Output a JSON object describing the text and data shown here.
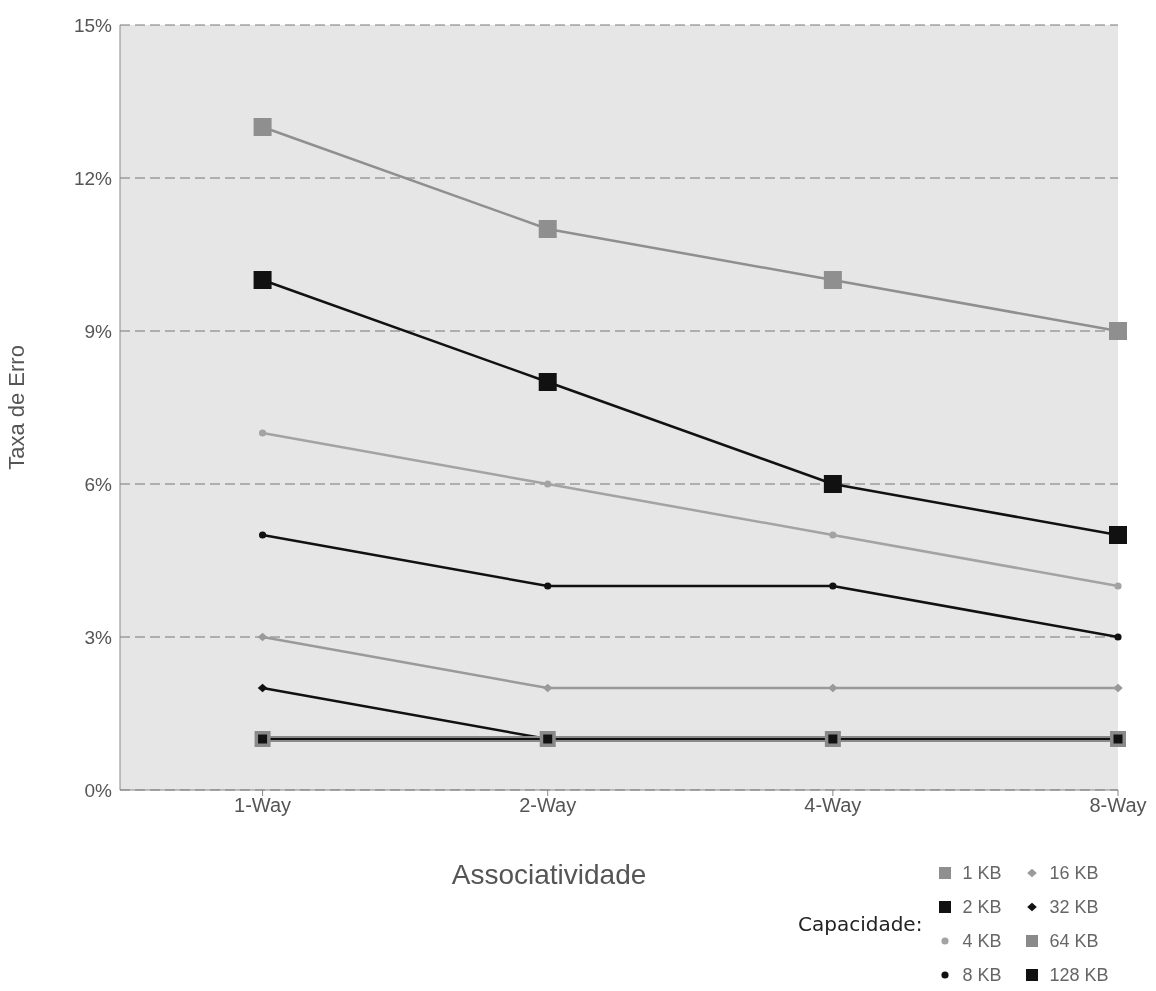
{
  "chart_data": {
    "type": "line",
    "ylabel": "Taxa de Erro",
    "xlabel": "Associatividade",
    "legend_title": "Capacidade:",
    "categories": [
      "1-Way",
      "2-Way",
      "4-Way",
      "8-Way"
    ],
    "series": [
      {
        "name": "1 KB",
        "color": "#8f8f8f",
        "marker": "square",
        "values": [
          13,
          11,
          10,
          9
        ]
      },
      {
        "name": "2 KB",
        "color": "#111111",
        "marker": "square",
        "values": [
          10,
          8,
          6,
          5
        ]
      },
      {
        "name": "4 KB",
        "color": "#a3a3a3",
        "marker": "circle",
        "values": [
          7,
          6,
          5,
          4
        ]
      },
      {
        "name": "8 KB",
        "color": "#111111",
        "marker": "circle",
        "values": [
          5,
          4,
          4,
          3
        ]
      },
      {
        "name": "16 KB",
        "color": "#9a9a9a",
        "marker": "diamond",
        "values": [
          3,
          2,
          2,
          2
        ]
      },
      {
        "name": "32 KB",
        "color": "#111111",
        "marker": "diamond",
        "values": [
          2,
          1,
          1,
          1
        ]
      },
      {
        "name": "64 KB",
        "color": "#8a8a8a",
        "marker": "square",
        "values": [
          1,
          1,
          1,
          1
        ]
      },
      {
        "name": "128 KB",
        "color": "#111111",
        "marker": "square",
        "values": [
          1,
          1,
          1,
          1
        ]
      }
    ],
    "ylim": [
      0,
      15
    ],
    "yticks": [
      {
        "value": 0,
        "label": "0%"
      },
      {
        "value": 3,
        "label": "3%"
      },
      {
        "value": 6,
        "label": "6%"
      },
      {
        "value": 9,
        "label": "9%"
      },
      {
        "value": 12,
        "label": "12%"
      },
      {
        "value": 15,
        "label": "15%"
      }
    ],
    "grid": "y",
    "legend": "bottom right",
    "line_style": "solid"
  }
}
